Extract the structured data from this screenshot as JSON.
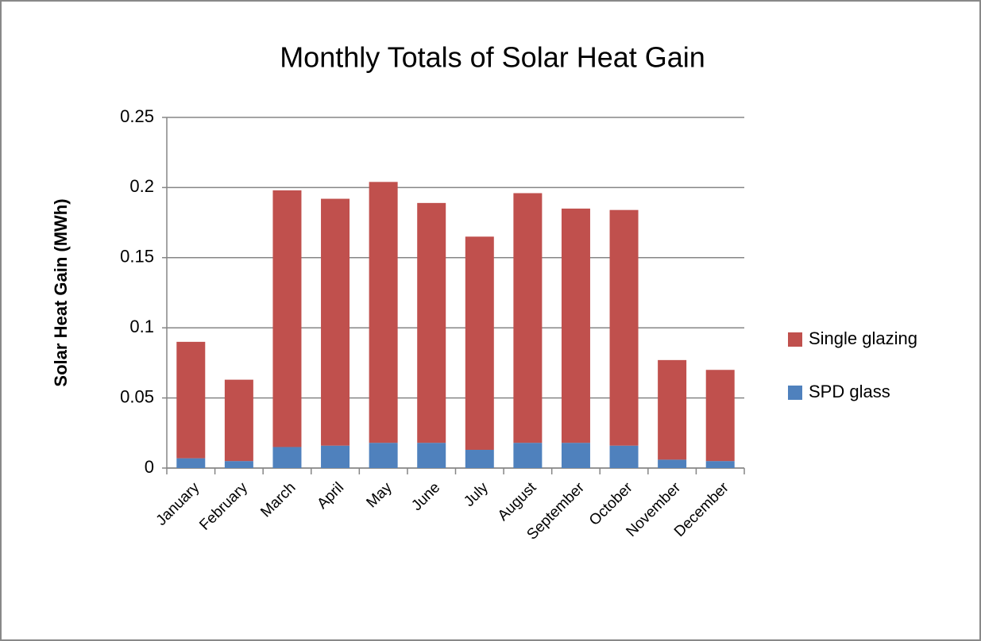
{
  "chart_data": {
    "type": "bar",
    "stacked": true,
    "title": "Monthly Totals of Solar Heat Gain",
    "y_label": "Solar Heat Gain  (MWh)",
    "categories": [
      "January",
      "February",
      "March",
      "April",
      "May",
      "June",
      "July",
      "August",
      "September",
      "October",
      "November",
      "December"
    ],
    "series": [
      {
        "name": "SPD glass",
        "color": "#4f81bd",
        "values": [
          0.007,
          0.005,
          0.015,
          0.016,
          0.018,
          0.018,
          0.013,
          0.018,
          0.018,
          0.016,
          0.006,
          0.005
        ]
      },
      {
        "name": "Single glazing",
        "color": "#c0504d",
        "values": [
          0.083,
          0.058,
          0.183,
          0.176,
          0.186,
          0.171,
          0.152,
          0.178,
          0.167,
          0.168,
          0.071,
          0.065
        ]
      }
    ],
    "ylim": [
      0,
      0.25
    ],
    "yticks": [
      0,
      0.05,
      0.1,
      0.15,
      0.2,
      0.25
    ],
    "grid": true,
    "legend": "right"
  }
}
